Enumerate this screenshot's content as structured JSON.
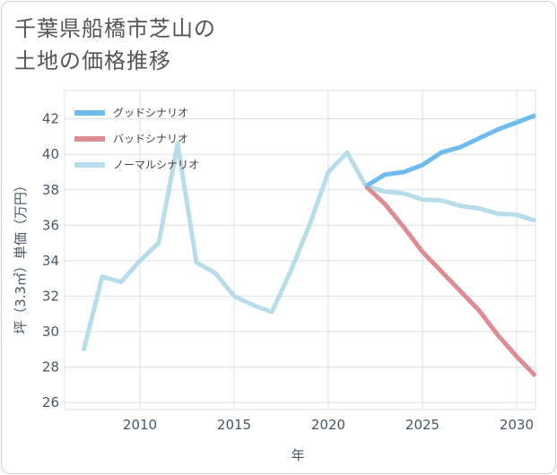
{
  "title_lines": [
    "千葉県船橋市芝山の",
    "土地の価格推移"
  ],
  "chart_data": {
    "type": "line",
    "xlabel": "年",
    "ylabel": "坪（3.3㎡）単価（万円）",
    "xlim": [
      2006,
      2031
    ],
    "ylim": [
      25.6,
      43.6
    ],
    "x_ticks": [
      2010,
      2015,
      2020,
      2025,
      2030
    ],
    "y_ticks": [
      26,
      28,
      30,
      32,
      34,
      36,
      38,
      40,
      42
    ],
    "grid": true,
    "legend_position": "top-left",
    "series": [
      {
        "name": "グッドシナリオ",
        "color": "#6dbcec",
        "x": [
          2022,
          2023,
          2024,
          2025,
          2026,
          2027,
          2028,
          2029,
          2030,
          2031
        ],
        "y": [
          38.2,
          38.85,
          39.0,
          39.4,
          40.1,
          40.4,
          40.9,
          41.4,
          41.8,
          42.2
        ]
      },
      {
        "name": "バッドシナリオ",
        "color": "#dd8c93",
        "x": [
          2022,
          2023,
          2024,
          2025,
          2026,
          2027,
          2028,
          2029,
          2030,
          2031
        ],
        "y": [
          38.2,
          37.2,
          35.9,
          34.5,
          33.4,
          32.3,
          31.2,
          29.8,
          28.6,
          27.5
        ]
      },
      {
        "name": "ノーマルシナリオ",
        "color": "#b7dcea",
        "x": [
          2007,
          2008,
          2009,
          2010,
          2011,
          2012,
          2013,
          2014,
          2015,
          2016,
          2017,
          2018,
          2019,
          2020,
          2021,
          2022,
          2023,
          2024,
          2025,
          2026,
          2027,
          2028,
          2029,
          2030,
          2031
        ],
        "y": [
          28.9,
          33.1,
          32.8,
          34.0,
          35.0,
          40.6,
          33.9,
          33.3,
          32.0,
          31.5,
          31.1,
          33.4,
          36.0,
          39.0,
          40.1,
          38.2,
          37.9,
          37.8,
          37.45,
          37.4,
          37.1,
          36.95,
          36.65,
          36.6,
          36.25
        ]
      }
    ]
  }
}
